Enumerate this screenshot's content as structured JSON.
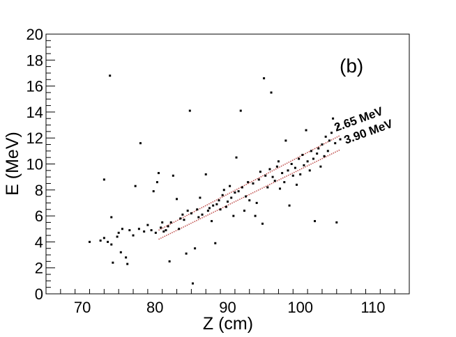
{
  "chart_data": {
    "type": "scatter",
    "xlabel": "Z (cm)",
    "ylabel": "E (MeV)",
    "xlim": [
      65,
      115
    ],
    "ylim": [
      0,
      20
    ],
    "xticks": [
      70,
      80,
      90,
      100,
      110
    ],
    "yticks": [
      0,
      2,
      4,
      6,
      8,
      10,
      12,
      14,
      16,
      18,
      20
    ],
    "grid": false,
    "panel_label": "(b)",
    "marker_color": "#000000",
    "fit_color": "#c0504d",
    "fit_lines": [
      {
        "label": "2.65 MeV",
        "x": [
          80.5,
          105.5
        ],
        "y": [
          4.9,
          12.2
        ]
      },
      {
        "label": "3.90 MeV",
        "x": [
          80.5,
          105.5
        ],
        "y": [
          4.2,
          11.1
        ]
      }
    ],
    "points": [
      [
        71,
        4.0
      ],
      [
        72.5,
        4.1
      ],
      [
        73,
        4.3
      ],
      [
        73,
        8.8
      ],
      [
        73.5,
        4.0
      ],
      [
        73.8,
        16.8
      ],
      [
        74,
        3.8
      ],
      [
        74,
        5.9
      ],
      [
        74.2,
        2.4
      ],
      [
        74.8,
        4.4
      ],
      [
        75,
        4.7
      ],
      [
        75.3,
        3.2
      ],
      [
        75.5,
        5.0
      ],
      [
        76,
        2.8
      ],
      [
        76.2,
        2.3
      ],
      [
        76.5,
        4.9
      ],
      [
        77,
        4.5
      ],
      [
        77.3,
        8.3
      ],
      [
        77.8,
        5.0
      ],
      [
        78,
        11.6
      ],
      [
        78.5,
        4.8
      ],
      [
        79,
        5.3
      ],
      [
        79.5,
        4.9
      ],
      [
        79.8,
        7.9
      ],
      [
        80.1,
        4.7
      ],
      [
        80.3,
        8.6
      ],
      [
        80.5,
        9.3
      ],
      [
        80.8,
        5.1
      ],
      [
        81,
        5.5
      ],
      [
        81.2,
        4.8
      ],
      [
        81.5,
        4.9
      ],
      [
        81.8,
        5.2
      ],
      [
        82,
        2.5
      ],
      [
        82.2,
        5.5
      ],
      [
        82.5,
        9.1
      ],
      [
        83,
        7.3
      ],
      [
        83.3,
        5.0
      ],
      [
        83.5,
        5.8
      ],
      [
        83.8,
        6.1
      ],
      [
        84,
        5.7
      ],
      [
        84.3,
        3.1
      ],
      [
        84.5,
        6.4
      ],
      [
        84.8,
        14.1
      ],
      [
        85,
        6.2
      ],
      [
        85.2,
        0.8
      ],
      [
        85.5,
        3.5
      ],
      [
        85.8,
        6.5
      ],
      [
        86,
        5.9
      ],
      [
        86.2,
        7.4
      ],
      [
        86.5,
        6.1
      ],
      [
        87,
        9.2
      ],
      [
        87.3,
        6.4
      ],
      [
        87.5,
        6.6
      ],
      [
        87.8,
        5.6
      ],
      [
        88,
        6.8
      ],
      [
        88.3,
        3.9
      ],
      [
        88.5,
        6.9
      ],
      [
        88.8,
        7.2
      ],
      [
        89,
        6.5
      ],
      [
        89.3,
        7.6
      ],
      [
        89.5,
        8.0
      ],
      [
        89.8,
        6.7
      ],
      [
        90,
        7.1
      ],
      [
        90.3,
        8.3
      ],
      [
        90.5,
        7.4
      ],
      [
        90.8,
        6.0
      ],
      [
        91,
        7.8
      ],
      [
        91.2,
        10.5
      ],
      [
        91.5,
        7.9
      ],
      [
        91.8,
        14.1
      ],
      [
        92,
        8.2
      ],
      [
        92.3,
        6.4
      ],
      [
        92.5,
        7.5
      ],
      [
        92.8,
        8.6
      ],
      [
        93,
        7.2
      ],
      [
        93.5,
        8.5
      ],
      [
        93.8,
        6.0
      ],
      [
        94,
        7.0
      ],
      [
        94.3,
        8.8
      ],
      [
        94.5,
        9.4
      ],
      [
        94.8,
        5.4
      ],
      [
        95,
        16.6
      ],
      [
        95.2,
        9.1
      ],
      [
        95.5,
        8.2
      ],
      [
        95.8,
        9.6
      ],
      [
        96,
        15.5
      ],
      [
        96.2,
        9.0
      ],
      [
        96.5,
        8.7
      ],
      [
        96.8,
        9.8
      ],
      [
        97,
        10.2
      ],
      [
        97.2,
        8.1
      ],
      [
        97.5,
        9.3
      ],
      [
        97.8,
        8.6
      ],
      [
        98,
        11.8
      ],
      [
        98.3,
        9.5
      ],
      [
        98.5,
        6.8
      ],
      [
        98.8,
        10.0
      ],
      [
        99,
        9.1
      ],
      [
        99.3,
        9.7
      ],
      [
        99.5,
        8.4
      ],
      [
        99.8,
        10.4
      ],
      [
        100,
        9.2
      ],
      [
        100.3,
        10.7
      ],
      [
        100.5,
        9.9
      ],
      [
        100.8,
        12.6
      ],
      [
        101,
        10.2
      ],
      [
        101.3,
        9.5
      ],
      [
        101.5,
        11.0
      ],
      [
        101.8,
        10.4
      ],
      [
        102,
        5.6
      ],
      [
        102.3,
        10.8
      ],
      [
        102.5,
        11.2
      ],
      [
        102.8,
        9.8
      ],
      [
        103,
        11.5
      ],
      [
        103.3,
        10.6
      ],
      [
        103.5,
        12.1
      ],
      [
        103.8,
        11.0
      ],
      [
        104,
        11.8
      ],
      [
        104.3,
        12.4
      ],
      [
        104.5,
        13.5
      ],
      [
        104.8,
        11.6
      ],
      [
        105,
        5.5
      ],
      [
        105.2,
        12.9
      ],
      [
        105.5,
        11.9
      ]
    ]
  }
}
